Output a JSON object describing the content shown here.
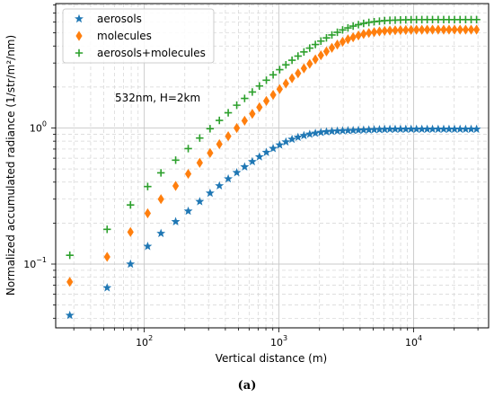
{
  "chart_data": {
    "type": "scatter",
    "x_scale": "log",
    "y_scale": "log",
    "xlim": [
      22,
      36000
    ],
    "ylim": [
      0.034,
      8.2
    ],
    "grid": true,
    "grid_minor": true,
    "xlabel": "Vertical distance (m)",
    "ylabel": "Normalized accumulated radiance (1/str/m²/nm)",
    "annotation": "532nm, H=2km",
    "caption": "(a)",
    "legend_position": "top-left",
    "x_ticks": [
      {
        "value": 100,
        "base": "10",
        "exp": "2"
      },
      {
        "value": 1000,
        "base": "10",
        "exp": "3"
      },
      {
        "value": 10000,
        "base": "10",
        "exp": "4"
      }
    ],
    "y_ticks": [
      {
        "value": 0.1,
        "label": "10",
        "exp": "−1"
      },
      {
        "value": 1,
        "label": "10",
        "exp": "0"
      }
    ],
    "x": [
      28,
      53,
      79,
      106,
      133,
      171,
      212,
      258,
      308,
      361,
      420,
      486,
      556,
      634,
      716,
      806,
      905,
      1012,
      1126,
      1250,
      1385,
      1532,
      1691,
      1863,
      2048,
      2252,
      2471,
      2712,
      2969,
      3252,
      3553,
      3890,
      4250,
      4650,
      5090,
      5570,
      6090,
      6660,
      7290,
      7980,
      8740,
      9570,
      10490,
      11500,
      12600,
      13800,
      15200,
      16700,
      18300,
      20100,
      22100,
      24300,
      26700,
      29300
    ],
    "series": [
      {
        "name": "aerosols",
        "marker": "star",
        "color": "#1f77b4",
        "values": [
          0.042,
          0.067,
          0.1,
          0.135,
          0.168,
          0.205,
          0.245,
          0.288,
          0.332,
          0.376,
          0.423,
          0.47,
          0.518,
          0.566,
          0.614,
          0.662,
          0.707,
          0.75,
          0.79,
          0.826,
          0.855,
          0.88,
          0.9,
          0.915,
          0.928,
          0.938,
          0.945,
          0.95,
          0.954,
          0.957,
          0.96,
          0.963,
          0.966,
          0.969,
          0.972,
          0.975,
          0.977,
          0.979,
          0.98,
          0.98,
          0.98,
          0.98,
          0.98,
          0.98,
          0.98,
          0.98,
          0.98,
          0.98,
          0.98,
          0.98,
          0.98,
          0.98,
          0.98,
          0.98
        ]
      },
      {
        "name": "molecules",
        "marker": "diamond",
        "color": "#ff7f0e",
        "values": [
          0.074,
          0.113,
          0.172,
          0.236,
          0.3,
          0.375,
          0.46,
          0.555,
          0.655,
          0.76,
          0.87,
          1.0,
          1.13,
          1.27,
          1.42,
          1.58,
          1.75,
          1.93,
          2.12,
          2.32,
          2.52,
          2.74,
          2.96,
          3.19,
          3.42,
          3.65,
          3.88,
          4.1,
          4.3,
          4.48,
          4.64,
          4.78,
          4.9,
          4.99,
          5.06,
          5.12,
          5.17,
          5.2,
          5.22,
          5.24,
          5.25,
          5.26,
          5.27,
          5.27,
          5.28,
          5.28,
          5.28,
          5.28,
          5.28,
          5.28,
          5.28,
          5.28,
          5.28,
          5.28
        ]
      },
      {
        "name": "aerosols+molecules",
        "marker": "plus",
        "color": "#2ca02c",
        "values": [
          0.116,
          0.18,
          0.272,
          0.371,
          0.468,
          0.58,
          0.705,
          0.843,
          0.987,
          1.136,
          1.293,
          1.47,
          1.648,
          1.836,
          2.034,
          2.242,
          2.457,
          2.68,
          2.91,
          3.146,
          3.375,
          3.62,
          3.86,
          4.105,
          4.348,
          4.588,
          4.825,
          5.05,
          5.254,
          5.437,
          5.6,
          5.743,
          5.866,
          5.959,
          6.032,
          6.095,
          6.147,
          6.179,
          6.2,
          6.22,
          6.23,
          6.24,
          6.25,
          6.25,
          6.26,
          6.26,
          6.26,
          6.26,
          6.26,
          6.26,
          6.26,
          6.26,
          6.26,
          6.26
        ]
      }
    ]
  }
}
